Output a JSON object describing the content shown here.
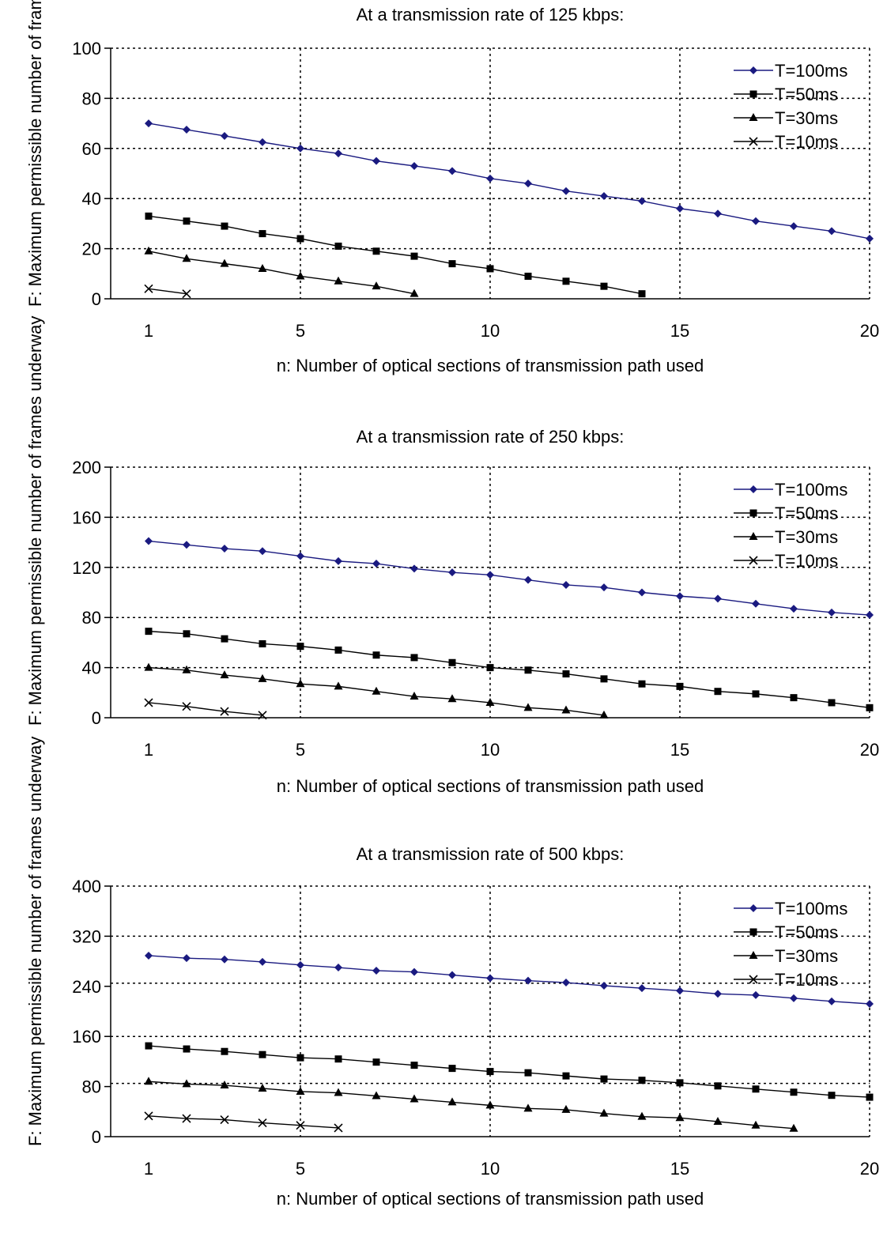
{
  "chart_data": [
    {
      "type": "line",
      "title": "At a transmission rate of 125 kbps:",
      "xlabel": "n: Number of optical sections of transmission path used",
      "ylabel": "F: Maximum permissible number of frames underway",
      "xlim": [
        0,
        20
      ],
      "ylim": [
        0,
        100
      ],
      "xticks": [
        "1",
        "5",
        "10",
        "15",
        "20"
      ],
      "xtick_values": [
        1,
        5,
        10,
        15,
        20
      ],
      "yticks": [
        "0",
        "20",
        "40",
        "60",
        "80",
        "100"
      ],
      "ytick_values": [
        0,
        20,
        40,
        60,
        80,
        100
      ],
      "grid": true,
      "legend_position": "top-right",
      "series": [
        {
          "name": "T=100ms",
          "marker": "diamond",
          "color": "#1a1a80",
          "x": [
            1,
            2,
            3,
            4,
            5,
            6,
            7,
            8,
            9,
            10,
            11,
            12,
            13,
            14,
            15,
            16,
            17,
            18,
            19,
            20
          ],
          "values": [
            70,
            67.5,
            65,
            62.5,
            60,
            58,
            55,
            53,
            51,
            48,
            46,
            43,
            41,
            39,
            36,
            34,
            31,
            29,
            27,
            24
          ]
        },
        {
          "name": "T=50ms",
          "marker": "square",
          "color": "#000000",
          "x": [
            1,
            2,
            3,
            4,
            5,
            6,
            7,
            8,
            9,
            10,
            11,
            12,
            13,
            14
          ],
          "values": [
            33,
            31,
            29,
            26,
            24,
            21,
            19,
            17,
            14,
            12,
            9,
            7,
            5,
            2
          ]
        },
        {
          "name": "T=30ms",
          "marker": "triangle",
          "color": "#000000",
          "x": [
            1,
            2,
            3,
            4,
            5,
            6,
            7,
            8
          ],
          "values": [
            19,
            16,
            14,
            12,
            9,
            7,
            5,
            2
          ]
        },
        {
          "name": "T=10ms",
          "marker": "x",
          "color": "#000000",
          "x": [
            1,
            2
          ],
          "values": [
            4,
            2
          ]
        }
      ]
    },
    {
      "type": "line",
      "title": "At a transmission rate of 250 kbps:",
      "xlabel": "n: Number of optical sections of transmission path used",
      "ylabel": "F: Maximum permissible number of frames underway",
      "xlim": [
        0,
        20
      ],
      "ylim": [
        0,
        200
      ],
      "xticks": [
        "1",
        "5",
        "10",
        "15",
        "20"
      ],
      "xtick_values": [
        1,
        5,
        10,
        15,
        20
      ],
      "yticks": [
        "0",
        "40",
        "80",
        "120",
        "160",
        "200"
      ],
      "ytick_values": [
        0,
        40,
        80,
        120,
        160,
        200
      ],
      "grid": true,
      "legend_position": "top-right",
      "series": [
        {
          "name": "T=100ms",
          "marker": "diamond",
          "color": "#1a1a80",
          "x": [
            1,
            2,
            3,
            4,
            5,
            6,
            7,
            8,
            9,
            10,
            11,
            12,
            13,
            14,
            15,
            16,
            17,
            18,
            19,
            20
          ],
          "values": [
            141,
            138,
            135,
            133,
            129,
            125,
            123,
            119,
            116,
            114,
            110,
            106,
            104,
            100,
            97,
            95,
            91,
            87,
            84,
            82
          ]
        },
        {
          "name": "T=50ms",
          "marker": "square",
          "color": "#000000",
          "x": [
            1,
            2,
            3,
            4,
            5,
            6,
            7,
            8,
            9,
            10,
            11,
            12,
            13,
            14,
            15,
            16,
            17,
            18,
            19,
            20
          ],
          "values": [
            69,
            67,
            63,
            59,
            57,
            54,
            50,
            48,
            44,
            40,
            38,
            35,
            31,
            27,
            25,
            21,
            19,
            16,
            12,
            8
          ]
        },
        {
          "name": "T=30ms",
          "marker": "triangle",
          "color": "#000000",
          "x": [
            1,
            2,
            3,
            4,
            5,
            6,
            7,
            8,
            9,
            10,
            11,
            12,
            13
          ],
          "values": [
            40,
            38,
            34,
            31,
            27,
            25,
            21,
            17,
            15,
            12,
            8,
            6,
            2
          ]
        },
        {
          "name": "T=10ms",
          "marker": "x",
          "color": "#000000",
          "x": [
            1,
            2,
            3,
            4
          ],
          "values": [
            12,
            9,
            5,
            2
          ]
        }
      ]
    },
    {
      "type": "line",
      "title": "At a transmission rate of 500 kbps:",
      "xlabel": "n: Number of optical sections of transmission path used",
      "ylabel": "F: Maximum permissible number of frames underway",
      "xlim": [
        0,
        20
      ],
      "ylim": [
        0,
        400
      ],
      "xticks": [
        "1",
        "5",
        "10",
        "15",
        "20"
      ],
      "xtick_values": [
        1,
        5,
        10,
        15,
        20
      ],
      "yticks": [
        "0",
        "80",
        "160",
        "240",
        "320",
        "400"
      ],
      "ytick_values": [
        0,
        80,
        160,
        240,
        320,
        400
      ],
      "grid_lines_y": [
        0,
        85,
        160,
        245,
        320,
        400
      ],
      "grid": true,
      "legend_position": "top-right",
      "series": [
        {
          "name": "T=100ms",
          "marker": "diamond",
          "color": "#1a1a80",
          "x": [
            1,
            2,
            3,
            4,
            5,
            6,
            7,
            8,
            9,
            10,
            11,
            12,
            13,
            14,
            15,
            16,
            17,
            18,
            19,
            20
          ],
          "values": [
            289,
            285,
            283,
            279,
            274,
            270,
            265,
            263,
            258,
            253,
            249,
            246,
            241,
            237,
            233,
            228,
            226,
            221,
            216,
            212
          ]
        },
        {
          "name": "T=50ms",
          "marker": "square",
          "color": "#000000",
          "x": [
            1,
            2,
            3,
            4,
            5,
            6,
            7,
            8,
            9,
            10,
            11,
            12,
            13,
            14,
            15,
            16,
            17,
            18,
            19,
            20
          ],
          "values": [
            145,
            140,
            136,
            131,
            126,
            124,
            119,
            114,
            109,
            104,
            102,
            97,
            92,
            90,
            86,
            81,
            76,
            71,
            66,
            63
          ]
        },
        {
          "name": "T=30ms",
          "marker": "triangle",
          "color": "#000000",
          "x": [
            1,
            2,
            3,
            4,
            5,
            6,
            7,
            8,
            9,
            10,
            11,
            12,
            13,
            14,
            15,
            16,
            17,
            18
          ],
          "values": [
            88,
            84,
            82,
            77,
            72,
            70,
            65,
            60,
            55,
            50,
            45,
            43,
            37,
            32,
            30,
            24,
            18,
            13
          ]
        },
        {
          "name": "T=10ms",
          "marker": "x",
          "color": "#000000",
          "x": [
            1,
            2,
            3,
            4,
            5,
            6
          ],
          "values": [
            33,
            29,
            27,
            22,
            18,
            14
          ]
        }
      ]
    }
  ]
}
